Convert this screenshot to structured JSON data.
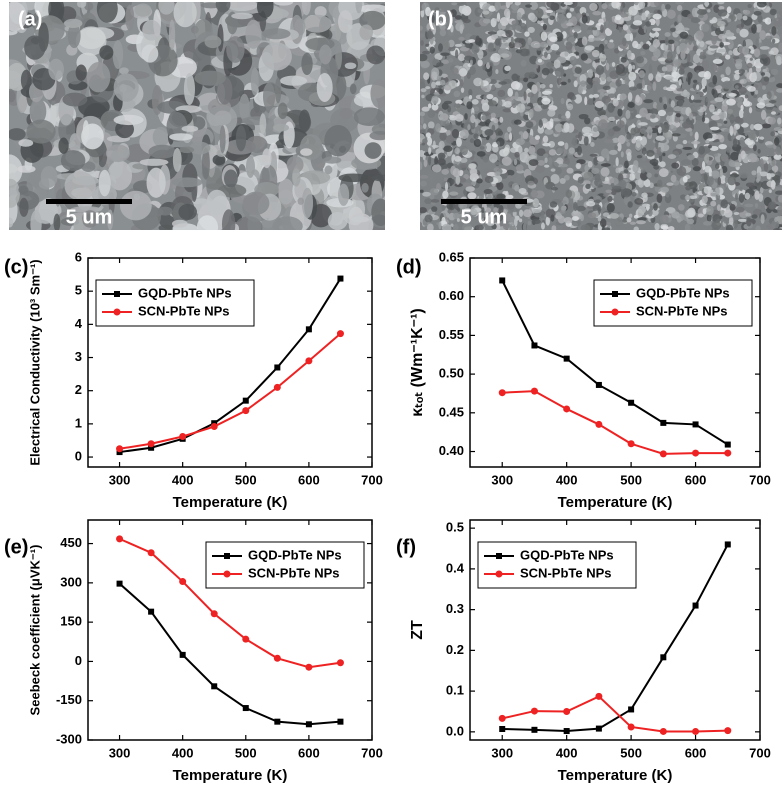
{
  "images": [
    {
      "label": "(a)",
      "scale_bar": "5 um"
    },
    {
      "label": "(b)",
      "scale_bar": "5 um"
    }
  ],
  "chart_data": [
    {
      "type": "line",
      "panel": "(c)",
      "xlabel": "Temperature (K)",
      "ylabel": "Electrical Conductivity (10³ Sm⁻¹)",
      "x": [
        300,
        350,
        400,
        450,
        500,
        550,
        600,
        650
      ],
      "xlim": [
        250,
        700
      ],
      "xticks": [
        300,
        400,
        500,
        600,
        700
      ],
      "ylim": [
        -0.3,
        6
      ],
      "yticks": [
        0,
        1,
        2,
        3,
        4,
        5,
        6
      ],
      "legend": "upper left",
      "series": [
        {
          "name": "GQD-PbTe NPs",
          "color": "#000000",
          "marker": "square",
          "values": [
            0.15,
            0.28,
            0.55,
            1.02,
            1.7,
            2.7,
            3.85,
            5.38
          ]
        },
        {
          "name": "SCN-PbTe NPs",
          "color": "#ee2222",
          "marker": "circle",
          "values": [
            0.25,
            0.4,
            0.62,
            0.92,
            1.4,
            2.1,
            2.9,
            3.72
          ]
        }
      ]
    },
    {
      "type": "line",
      "panel": "(d)",
      "xlabel": "Temperature (K)",
      "ylabel": "κₜₒₜ (Wm⁻¹K⁻¹)",
      "x": [
        300,
        350,
        400,
        450,
        500,
        550,
        600,
        650
      ],
      "xlim": [
        250,
        700
      ],
      "xticks": [
        300,
        400,
        500,
        600,
        700
      ],
      "ylim": [
        0.38,
        0.65
      ],
      "yticks": [
        {
          "value": 0.4,
          "label": "0.40"
        },
        0.45,
        {
          "value": 0.5,
          "label": "0.50"
        },
        0.55,
        {
          "value": 0.6,
          "label": "0.60"
        },
        0.65
      ],
      "legend": "upper right",
      "series": [
        {
          "name": "GQD-PbTe NPs",
          "color": "#000000",
          "marker": "square",
          "values": [
            0.621,
            0.537,
            0.52,
            0.486,
            0.463,
            0.437,
            0.435,
            0.409
          ]
        },
        {
          "name": "SCN-PbTe NPs",
          "color": "#ee2222",
          "marker": "circle",
          "values": [
            0.476,
            0.478,
            0.455,
            0.435,
            0.41,
            0.397,
            0.398,
            0.398
          ]
        }
      ]
    },
    {
      "type": "line",
      "panel": "(e)",
      "xlabel": "Temperature (K)",
      "ylabel": "Seebeck coefficient (μVK⁻¹)",
      "x": [
        300,
        350,
        400,
        450,
        500,
        550,
        600,
        650
      ],
      "xlim": [
        250,
        700
      ],
      "xticks": [
        300,
        400,
        500,
        600,
        700
      ],
      "ylim": [
        -300,
        540
      ],
      "yticks": [
        -300,
        -150,
        0,
        150,
        300,
        450
      ],
      "legend": "upper right",
      "series": [
        {
          "name": "GQD-PbTe NPs",
          "color": "#000000",
          "marker": "square",
          "values": [
            297,
            190,
            25,
            -95,
            -178,
            -230,
            -240,
            -230
          ]
        },
        {
          "name": "SCN-PbTe NPs",
          "color": "#ee2222",
          "marker": "circle",
          "values": [
            468,
            415,
            305,
            182,
            85,
            12,
            -22,
            -5
          ]
        }
      ]
    },
    {
      "type": "line",
      "panel": "(f)",
      "xlabel": "Temperature (K)",
      "ylabel": "ZT",
      "x": [
        300,
        350,
        400,
        450,
        500,
        550,
        600,
        650
      ],
      "xlim": [
        250,
        700
      ],
      "xticks": [
        300,
        400,
        500,
        600,
        700
      ],
      "ylim": [
        -0.02,
        0.52
      ],
      "yticks": [
        {
          "value": 0,
          "label": "0.0"
        },
        0.1,
        0.2,
        0.3,
        0.4,
        0.5
      ],
      "legend": "upper left",
      "series": [
        {
          "name": "GQD-PbTe NPs",
          "color": "#000000",
          "marker": "square",
          "values": [
            0.007,
            0.005,
            0.002,
            0.008,
            0.055,
            0.183,
            0.31,
            0.46
          ]
        },
        {
          "name": "SCN-PbTe NPs",
          "color": "#ee2222",
          "marker": "circle",
          "values": [
            0.033,
            0.051,
            0.05,
            0.087,
            0.012,
            0.001,
            0.001,
            0.003
          ]
        }
      ]
    }
  ]
}
